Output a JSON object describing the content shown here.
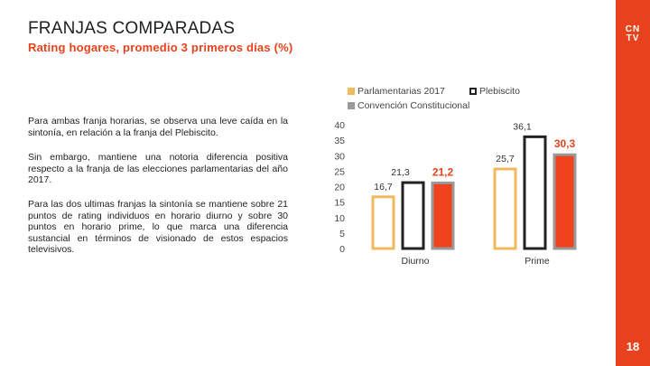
{
  "header": {
    "title": "FRANJAS COMPARADAS",
    "subtitle": "Rating hogares, promedio 3 primeros días (%)"
  },
  "brand": {
    "logo_line1": "CN",
    "logo_line2": "TV",
    "accent_color": "#e8421c"
  },
  "page_number": "18",
  "paragraphs": [
    "Para ambas franja horarias, se observa una leve caída en la sintonía, en relación a la franja del Plebiscito.",
    "Sin embargo, mantiene una notoria diferencia positiva respecto a la franja de las elecciones parlamentarias del año 2017.",
    "Para las dos ultimas franjas la sintonía se mantiene sobre 21 puntos de rating individuos en horario diurno y sobre 30 puntos en horario prime, lo que marca una diferencia sustancial en términos de visionado de estos espacios televisivos."
  ],
  "chart_data": {
    "type": "bar",
    "categories": [
      "Diurno",
      "Prime"
    ],
    "series": [
      {
        "name": "Parlamentarias 2017",
        "values": [
          16.7,
          25.7
        ],
        "labels": [
          "16,7",
          "25,7"
        ],
        "color": "#f0b95a",
        "fill": "#ffffff"
      },
      {
        "name": "Plebiscito",
        "values": [
          21.3,
          36.1
        ],
        "labels": [
          "21,3",
          "36,1"
        ],
        "color": "#222222",
        "fill": "#ffffff"
      },
      {
        "name": "Convención Constitucional",
        "values": [
          21.2,
          30.3
        ],
        "labels": [
          "21,2",
          "30,3"
        ],
        "color": "#999999",
        "fill": "#f0421c"
      }
    ],
    "y_ticks": [
      "40",
      "35",
      "30",
      "25",
      "20",
      "15",
      "10",
      "5",
      "0"
    ],
    "ylim": [
      0,
      40
    ],
    "legend_position": "top"
  }
}
